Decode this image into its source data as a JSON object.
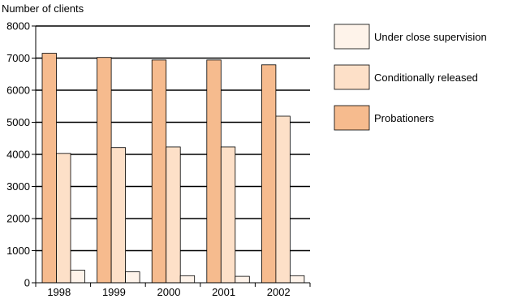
{
  "chart_data": {
    "type": "bar",
    "ylabel": "Number of clients",
    "xlabel": "",
    "title": "",
    "ylim": [
      0,
      8000
    ],
    "yticks": [
      0,
      1000,
      2000,
      3000,
      4000,
      5000,
      6000,
      7000,
      8000
    ],
    "grid": true,
    "legend_position": "right",
    "categories": [
      "1998",
      "1999",
      "2000",
      "2001",
      "2002"
    ],
    "series": [
      {
        "name": "Probationers",
        "color": "#f6bb8e",
        "values": [
          7150,
          7020,
          6940,
          6940,
          6790
        ]
      },
      {
        "name": "Conditionally released",
        "color": "#fde0c8",
        "values": [
          4030,
          4210,
          4230,
          4230,
          5190
        ]
      },
      {
        "name": "Under close supervision",
        "color": "#fef3ea",
        "values": [
          390,
          340,
          220,
          200,
          220
        ]
      }
    ],
    "legend_order": [
      "Under close supervision",
      "Conditionally released",
      "Probationers"
    ]
  }
}
